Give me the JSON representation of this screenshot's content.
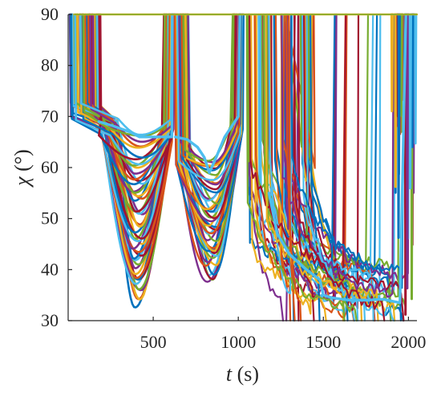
{
  "chart_data": {
    "type": "line",
    "xlabel": "t (s)",
    "xlabel_italic": "t",
    "xlabel_unit": " (s)",
    "ylabel": "χ (°)",
    "ylabel_italic": "χ",
    "ylabel_unit": " (°)",
    "xlim": [
      0,
      2050
    ],
    "ylim": [
      30,
      90
    ],
    "xticks": [
      500,
      1000,
      1500,
      2000
    ],
    "yticks": [
      30,
      40,
      50,
      60,
      70,
      80,
      90
    ],
    "xtick_labels": [
      "500",
      "1000",
      "1500",
      "2000"
    ],
    "ytick_labels": [
      "30",
      "40",
      "50",
      "60",
      "70",
      "80",
      "90"
    ],
    "grid": false,
    "legend": "none",
    "series_count_approx": 120,
    "palette": [
      "#0072BD",
      "#D95319",
      "#EDB120",
      "#7E2F8E",
      "#77AC30",
      "#4DBEEE",
      "#A2142F"
    ],
    "description_of_pattern": {
      "phase1": {
        "t_range": [
          0,
          620
        ],
        "start_value": 90,
        "plateau": 69,
        "min_range": [
          33,
          66
        ],
        "min_at_t": [
          380,
          440
        ]
      },
      "phase2": {
        "t_range": [
          620,
          1030
        ],
        "plateau": 66,
        "min_range": [
          37,
          62
        ],
        "min_at_t": [
          820,
          880
        ]
      },
      "phase3": {
        "t_range": [
          1030,
          1500
        ],
        "levels_range": [
          30,
          70
        ]
      },
      "phase4": {
        "t_range": [
          1500,
          2000
        ],
        "levels_range": [
          30,
          40
        ],
        "highlight_level": 34
      }
    }
  }
}
